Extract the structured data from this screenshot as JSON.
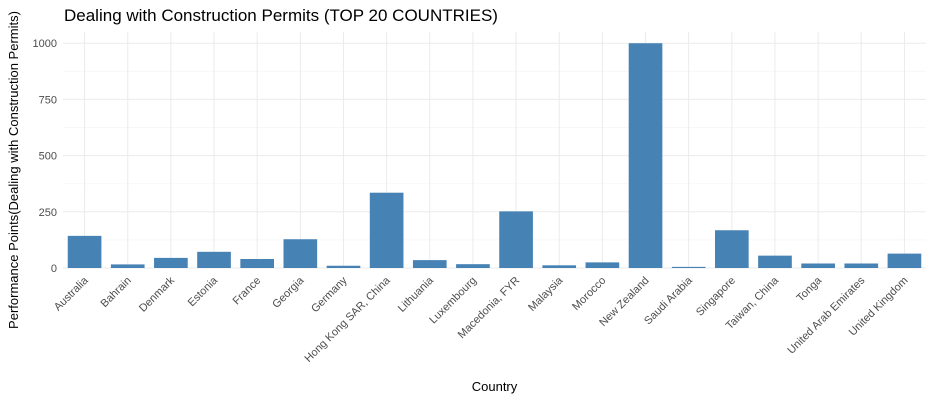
{
  "chart_data": {
    "type": "bar",
    "title": "Dealing with Construction Permits (TOP 20 COUNTRIES)",
    "xlabel": "Country",
    "ylabel": "Performance Points(Dealing with Construction Permits)",
    "ylim": [
      0,
      1050
    ],
    "yticks": [
      0,
      250,
      500,
      750,
      1000
    ],
    "grid": true,
    "bar_color": "#4682B4",
    "categories": [
      "Australia",
      "Bahrain",
      "Denmark",
      "Estonia",
      "France",
      "Georgia",
      "Germany",
      "Hong Kong SAR, China",
      "Lithuania",
      "Luxembourg",
      "Macedonia, FYR",
      "Malaysia",
      "Morocco",
      "New Zealand",
      "Saudi Arabia",
      "Singapore",
      "Taiwan, China",
      "Tonga",
      "United Arab Emirates",
      "United Kingdom"
    ],
    "values": [
      143,
      16,
      45,
      72,
      40,
      128,
      10,
      335,
      35,
      17,
      252,
      12,
      25,
      1000,
      5,
      168,
      55,
      20,
      20,
      64
    ]
  }
}
